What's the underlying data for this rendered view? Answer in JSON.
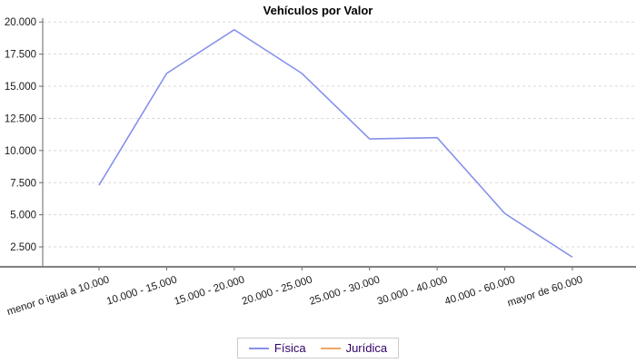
{
  "title": "Vehículos por Valor",
  "chart_data": {
    "type": "line",
    "title": "Vehículos por Valor",
    "xlabel": "",
    "ylabel": "",
    "categories": [
      "menor o igual a 10.000",
      "10.000 - 15.000",
      "15.000 - 20.000",
      "20.000 - 25.000",
      "25.000 - 30.000",
      "30.000 - 40.000",
      "40.000 - 60.000",
      "mayor de 60.000"
    ],
    "series": [
      {
        "name": "Física",
        "color": "#8590ec",
        "values": [
          7300,
          16000,
          19400,
          16000,
          10900,
          11000,
          5100,
          1700
        ]
      },
      {
        "name": "Jurídica",
        "color": "#f0a66a",
        "values": []
      }
    ],
    "y_ticks": [
      2500,
      5000,
      7500,
      10000,
      12500,
      15000,
      17500,
      20000
    ],
    "y_tick_labels": [
      "2.500",
      "5.000",
      "7.500",
      "10.000",
      "12.500",
      "15.000",
      "17.500",
      "20.000"
    ],
    "ylim": [
      950,
      20300
    ],
    "grid": true,
    "grid_style": "dashed",
    "legend_position": "bottom"
  },
  "legend": {
    "items": [
      {
        "label": "Física",
        "color": "#8590ec"
      },
      {
        "label": "Jurídica",
        "color": "#f0a66a"
      }
    ]
  },
  "colors": {
    "background": "#ffffff",
    "gridline": "#d9d9d9",
    "y_axis_line": "#666666",
    "x_axis_line": "#808080",
    "tick_label": "#1a1a1a",
    "legend_text": "#330066",
    "legend_border": "#cccccc"
  }
}
